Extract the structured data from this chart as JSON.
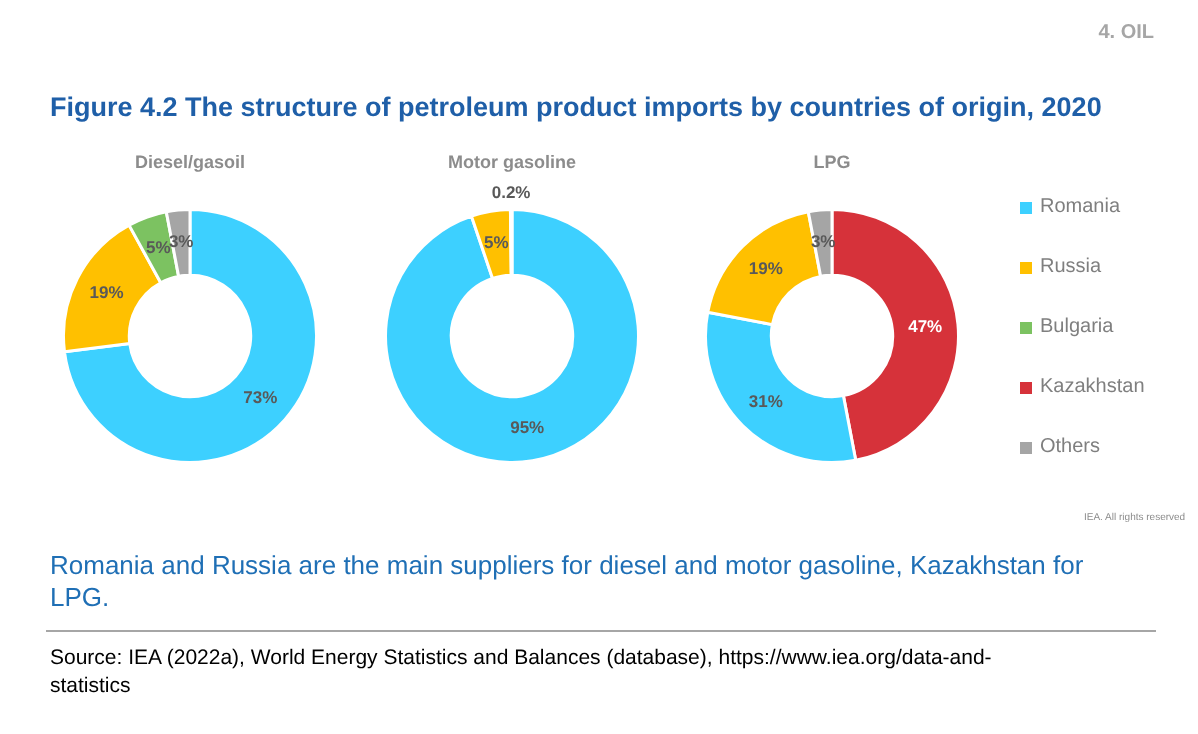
{
  "chart_data": [
    {
      "type": "donut",
      "title": "Diesel/gasoil",
      "categories": [
        "Romania",
        "Russia",
        "Bulgaria",
        "Kazakhstan",
        "Others"
      ],
      "values": [
        73,
        19,
        5,
        null,
        3
      ],
      "colors": [
        "#3dd0ff",
        "#ffc000",
        "#7cc261",
        "#d6323a",
        "#a5a5a5"
      ],
      "value_labels": [
        "73%",
        "19%",
        "5%",
        null,
        "3%"
      ],
      "annotations": [
        "4. OIL",
        "Figure 4.2  The structure of petroleum product imports by countries of origin, 2020"
      ],
      "legend": "right"
    },
    {
      "type": "donut",
      "title": "Motor gasoline",
      "categories": [
        null,
        null,
        null
      ],
      "values": [
        95,
        5,
        0.2
      ],
      "colors": [
        "#3dd0ff",
        "#ffc000",
        "#a5a5a5"
      ],
      "value_labels": [
        "95%",
        "5%",
        "0.2%"
      ]
    },
    {
      "type": "donut",
      "title": "LPG",
      "categories": [
        null,
        null,
        null,
        null
      ],
      "values": [
        47,
        31,
        19,
        3
      ],
      "colors": [
        "#d6323a",
        "#3dd0ff",
        "#ffc000",
        "#a5a5a5"
      ],
      "value_labels": [
        "47%",
        "31%",
        "19%",
        "3%"
      ],
      "annotations": [
        "IEA. All rights reserved",
        "Romania and Russia are the main suppliers for diesel and motor gasoline, Kazakhstan for LPG.",
        "Source: IEA (2022a), World Energy Statistics and Balances (database), https://www.iea.org/data-and-statistics"
      ]
    }
  ]
}
